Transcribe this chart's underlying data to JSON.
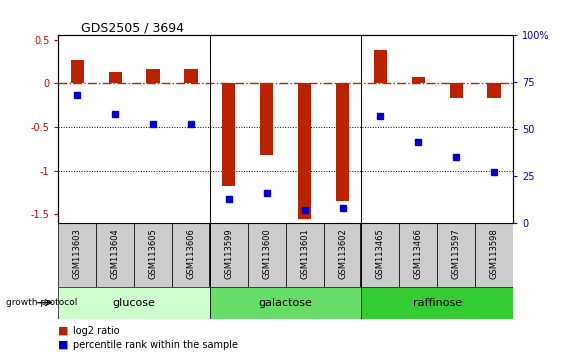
{
  "title": "GDS2505 / 3694",
  "samples": [
    "GSM113603",
    "GSM113604",
    "GSM113605",
    "GSM113606",
    "GSM113599",
    "GSM113600",
    "GSM113601",
    "GSM113602",
    "GSM113465",
    "GSM113466",
    "GSM113597",
    "GSM113598"
  ],
  "log2_ratio": [
    0.27,
    0.13,
    0.17,
    0.17,
    -1.18,
    -0.82,
    -1.55,
    -1.35,
    0.38,
    0.07,
    -0.17,
    -0.17
  ],
  "percentile_rank": [
    68,
    58,
    53,
    53,
    13,
    16,
    7,
    8,
    57,
    43,
    35,
    27
  ],
  "groups": [
    {
      "label": "glucose",
      "start": 0,
      "end": 4,
      "color": "#ccffcc"
    },
    {
      "label": "galactose",
      "start": 4,
      "end": 8,
      "color": "#66dd66"
    },
    {
      "label": "raffinose",
      "start": 8,
      "end": 12,
      "color": "#33cc33"
    }
  ],
  "bar_color": "#bb2200",
  "dot_color": "#0000cc",
  "ylim_left": [
    -1.6,
    0.55
  ],
  "ylim_right": [
    0,
    100
  ],
  "dotted_lines": [
    -0.5,
    -1.0
  ],
  "background_color": "#ffffff",
  "tick_color_left": "#cc0000",
  "tick_color_right": "#0000cc",
  "bar_width": 0.35,
  "sample_box_color": "#cccccc",
  "group_separator_color": "#000000",
  "title_fontsize": 9,
  "ytick_fontsize": 7,
  "sample_fontsize": 6,
  "group_fontsize": 8,
  "legend_fontsize": 7
}
